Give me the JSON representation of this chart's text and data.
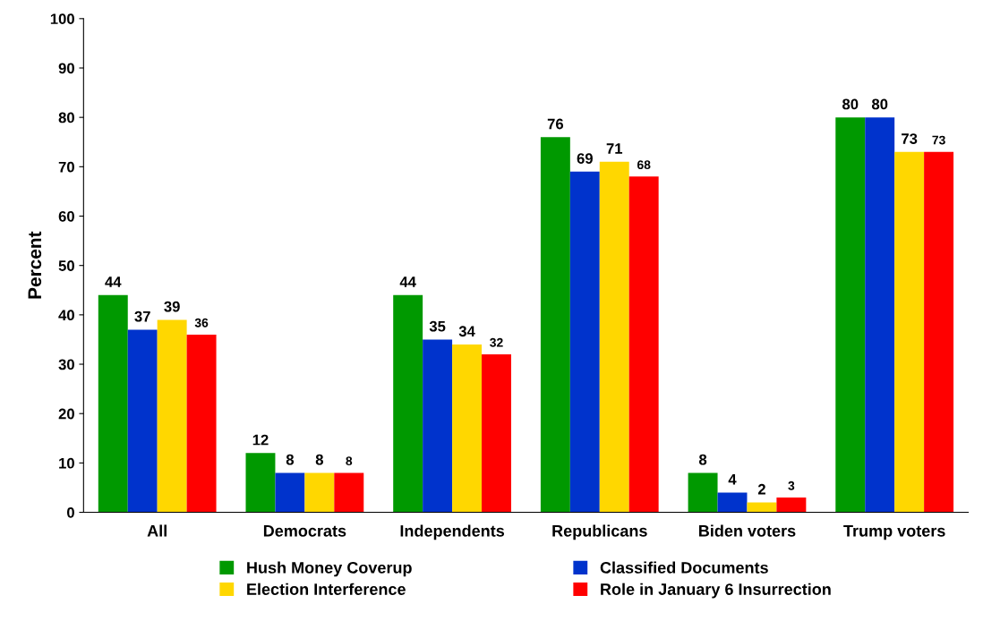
{
  "chart_data": {
    "type": "bar",
    "ylabel": "Percent",
    "categories": [
      "All",
      "Democrats",
      "Independents",
      "Republicans",
      "Biden voters",
      "Trump voters"
    ],
    "series": [
      {
        "name": "Hush Money Coverup",
        "color": "#009900",
        "values": [
          44,
          12,
          44,
          76,
          8,
          80
        ]
      },
      {
        "name": "Classified Documents",
        "color": "#0033cc",
        "values": [
          37,
          8,
          35,
          69,
          4,
          80
        ]
      },
      {
        "name": "Election Interference",
        "color": "#ffd700",
        "values": [
          39,
          8,
          34,
          71,
          2,
          73
        ]
      },
      {
        "name": "Role in January 6 Insurrection",
        "color": "#ff0000",
        "values": [
          36,
          8,
          32,
          68,
          3,
          73
        ]
      }
    ],
    "ylim": [
      0,
      100
    ],
    "yticks": [
      0,
      10,
      20,
      30,
      40,
      50,
      60,
      70,
      80,
      90,
      100
    ],
    "data_labels": true,
    "grid": false,
    "legend": "bottom"
  }
}
